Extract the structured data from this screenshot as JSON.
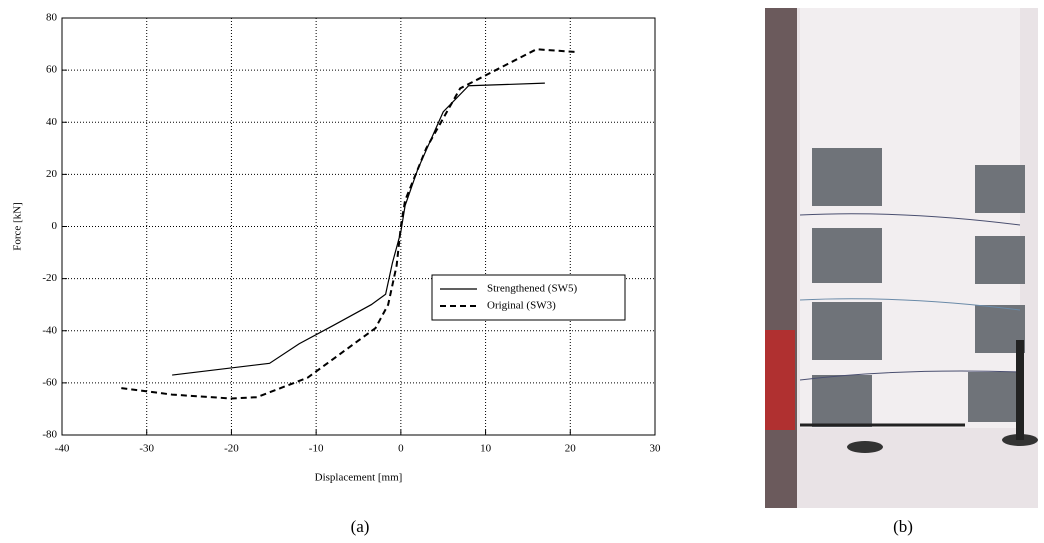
{
  "chart_data": {
    "type": "line",
    "xlabel": "Displacement [mm]",
    "ylabel": "Force [kN]",
    "series": [
      {
        "name": "Strengthened (SW5)",
        "color": "#000000",
        "line_style": "solid",
        "x": [
          -27,
          -15.5,
          -12,
          -8,
          -3.5,
          -1.8,
          -1,
          -0.5,
          0,
          0.5,
          2,
          5,
          8,
          17
        ],
        "values": [
          -57,
          -52.5,
          -45,
          -38,
          -30,
          -26,
          -14,
          -8,
          -2,
          8,
          22,
          44,
          54,
          55
        ]
      },
      {
        "name": "Original (SW3)",
        "color": "#000000",
        "line_style": "dashed",
        "x": [
          -33,
          -27,
          -20,
          -17,
          -11,
          -3,
          -1.5,
          -0.5,
          0,
          0.5,
          3,
          7,
          10,
          16,
          20.5
        ],
        "values": [
          -62,
          -64.5,
          -66,
          -65.5,
          -58,
          -39,
          -30,
          -15,
          0,
          10,
          30,
          53,
          58,
          68,
          67
        ]
      }
    ],
    "xlim": [
      -40,
      30
    ],
    "xticks": [
      -40,
      -30,
      -20,
      -10,
      0,
      10,
      20,
      30
    ],
    "ylim": [
      -80,
      80
    ],
    "yticks": [
      -80,
      -60,
      -40,
      -20,
      0,
      20,
      40,
      60,
      80
    ],
    "grid": true,
    "legend": "lower right"
  },
  "captions": [
    "(a)",
    "(b)"
  ]
}
